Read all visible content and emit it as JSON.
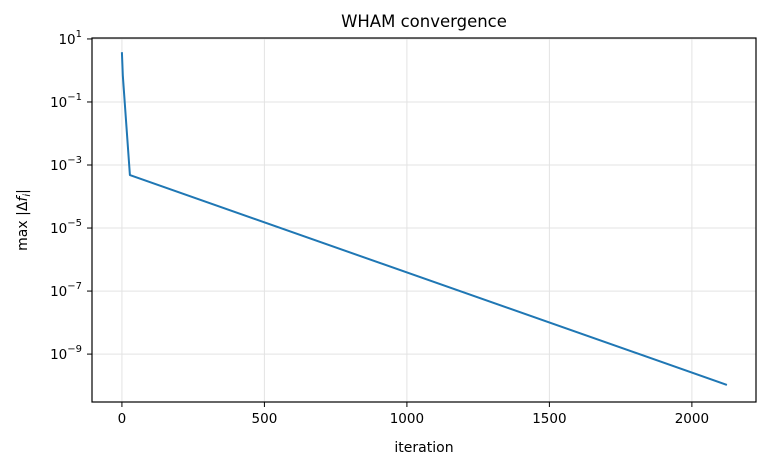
{
  "chart_data": {
    "type": "line",
    "title": "WHAM convergence",
    "xlabel": "iteration",
    "ylabel_prefix": "max |Δ",
    "ylabel_f": "f",
    "ylabel_i": "i",
    "ylabel_suffix": "|",
    "yscale": "log",
    "xlim": [
      -105,
      2225
    ],
    "ylim_log10": [
      -10.52,
      1.03
    ],
    "grid": true,
    "xticks": [
      0,
      500,
      1000,
      1500,
      2000
    ],
    "xtick_labels": [
      "0",
      "500",
      "1000",
      "1500",
      "2000"
    ],
    "yticks_log10": [
      1,
      -1,
      -3,
      -5,
      -7,
      -9
    ],
    "ytick_labels": [
      "1",
      "-1",
      "-3",
      "-5",
      "-7",
      "-9"
    ],
    "series": [
      {
        "name": "max |Δf_i|",
        "color": "#1f77b4",
        "x": [
          0,
          3,
          28,
          2123
        ],
        "y": [
          3.8,
          0.7,
          0.00048,
          1.05e-10
        ]
      }
    ]
  }
}
